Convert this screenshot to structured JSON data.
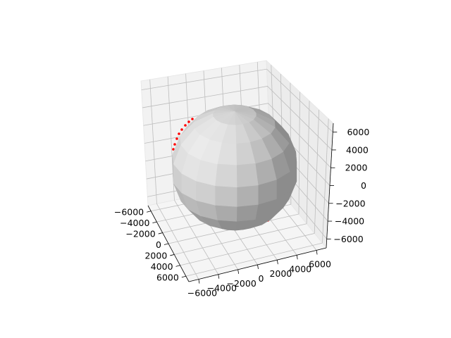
{
  "chart_data": {
    "type": "3d-surface",
    "title": "",
    "surface": {
      "shape": "sphere",
      "radius": 6371,
      "color": "#d0d0d0"
    },
    "trajectory": {
      "color": "#ff0000",
      "marker": "dot",
      "visibility": "mostly hidden behind sphere"
    },
    "axes": {
      "x": {
        "ticks": [
          -6000,
          -4000,
          -2000,
          0,
          2000,
          4000,
          6000
        ],
        "tick_labels": [
          "−6000",
          "−4000",
          "−2000",
          "0",
          "2000",
          "4000",
          "6000"
        ],
        "lim": [
          -7000,
          7000
        ]
      },
      "y": {
        "ticks": [
          -6000,
          -4000,
          -2000,
          0,
          2000,
          4000,
          6000
        ],
        "tick_labels": [
          "−6000",
          "−4000",
          "−2000",
          "0",
          "2000",
          "4000",
          "6000"
        ],
        "lim": [
          -7000,
          7000
        ]
      },
      "z": {
        "ticks": [
          -6000,
          -4000,
          -2000,
          0,
          2000,
          4000,
          6000
        ],
        "tick_labels": [
          "−6000",
          "−4000",
          "−2000",
          "0",
          "2000",
          "4000",
          "6000"
        ],
        "lim": [
          -7000,
          7000
        ]
      }
    },
    "grid": true,
    "view": {
      "elev": 30,
      "azim": -60
    }
  }
}
